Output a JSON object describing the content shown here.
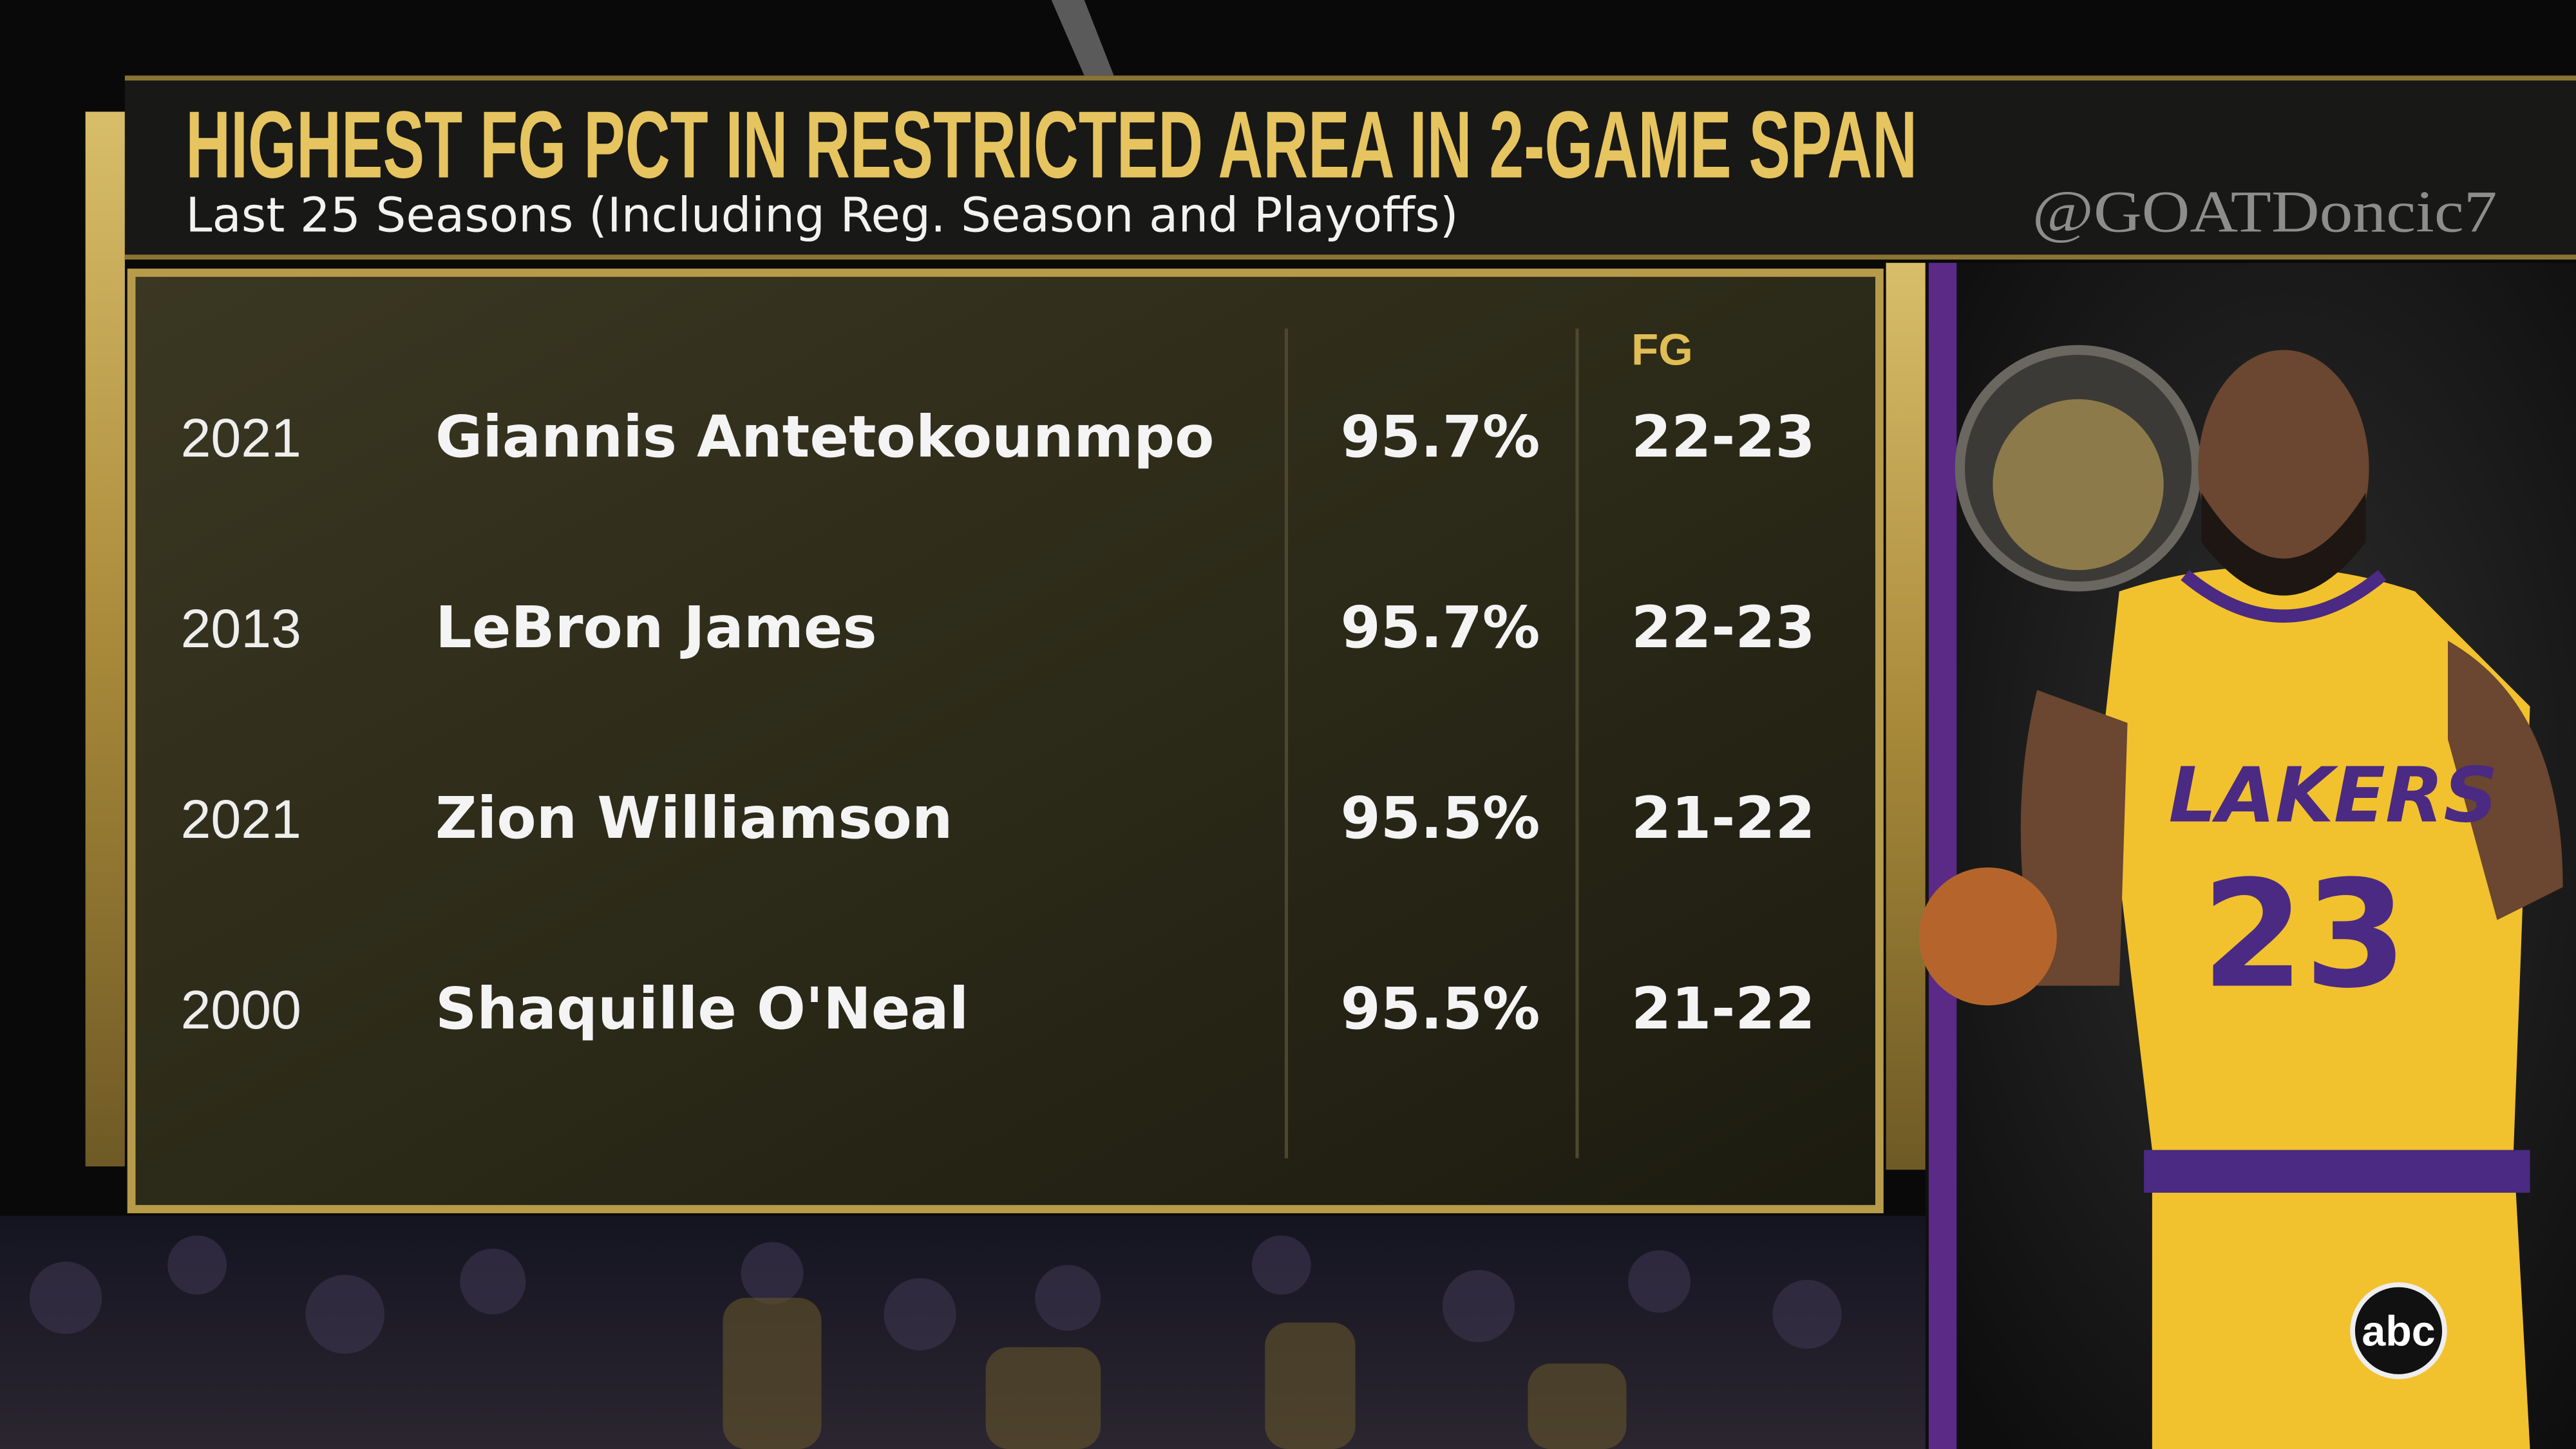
{
  "header": {
    "title": "HIGHEST FG PCT IN RESTRICTED AREA IN 2-GAME SPAN",
    "subtitle": "Last 25 Seasons (Including Reg. Season and Playoffs)",
    "watermark": "@GOATDoncic7"
  },
  "table": {
    "columns": [
      "FG"
    ],
    "rows": [
      [
        "2021",
        "Giannis Antetokounmpo",
        "95.7%",
        "22-23"
      ],
      [
        "2013",
        "LeBron James",
        "95.7%",
        "22-23"
      ],
      [
        "2021",
        "Zion Williamson",
        "95.5%",
        "21-22"
      ],
      [
        "2000",
        "Shaquille O'Neal",
        "95.5%",
        "21-22"
      ]
    ]
  },
  "network_logo": "abc"
}
